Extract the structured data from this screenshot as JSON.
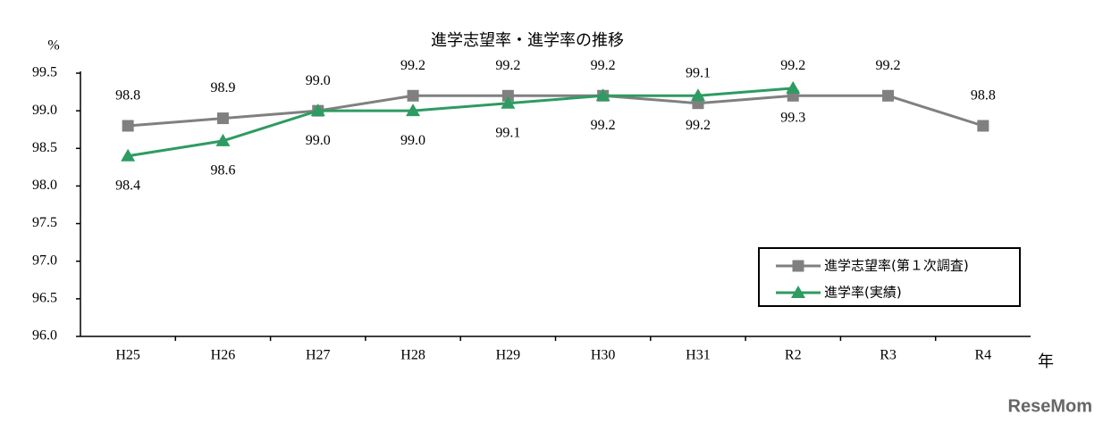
{
  "chart_data": {
    "type": "line",
    "title": "進学志望率・進学率の推移",
    "y_unit": "%",
    "x_unit": "年",
    "watermark": "ReseMom",
    "categories": [
      "H25",
      "H26",
      "H27",
      "H28",
      "H29",
      "H30",
      "H31",
      "R2",
      "R3",
      "R4"
    ],
    "series": [
      {
        "name": "進学志望率(第１次調査)",
        "color": "#808080",
        "marker": "square",
        "values": [
          98.8,
          98.9,
          99.0,
          99.2,
          99.2,
          99.2,
          99.1,
          99.2,
          99.2,
          98.8
        ],
        "value_labels": [
          "98.8",
          "98.9",
          "99.0",
          "99.2",
          "99.2",
          "99.2",
          "99.1",
          "99.2",
          "99.2",
          "98.8"
        ]
      },
      {
        "name": "進学率(実績)",
        "color": "#2e9b62",
        "marker": "triangle",
        "values": [
          98.4,
          98.6,
          99.0,
          99.0,
          99.1,
          99.2,
          99.2,
          99.3,
          null,
          null
        ],
        "value_labels": [
          "98.4",
          "98.6",
          "99.0",
          "99.0",
          "99.1",
          "99.2",
          "99.2",
          "99.3",
          null,
          null
        ]
      }
    ],
    "ylim": [
      96,
      99.5
    ],
    "yticks": [
      {
        "value": 96,
        "label": "96.0"
      },
      96.5,
      {
        "value": 97,
        "label": "97.0"
      },
      97.5,
      {
        "value": 98,
        "label": "98.0"
      },
      98.5,
      {
        "value": 99,
        "label": "99.0"
      },
      99.5
    ],
    "grid": false,
    "legend_position": "lower right"
  }
}
